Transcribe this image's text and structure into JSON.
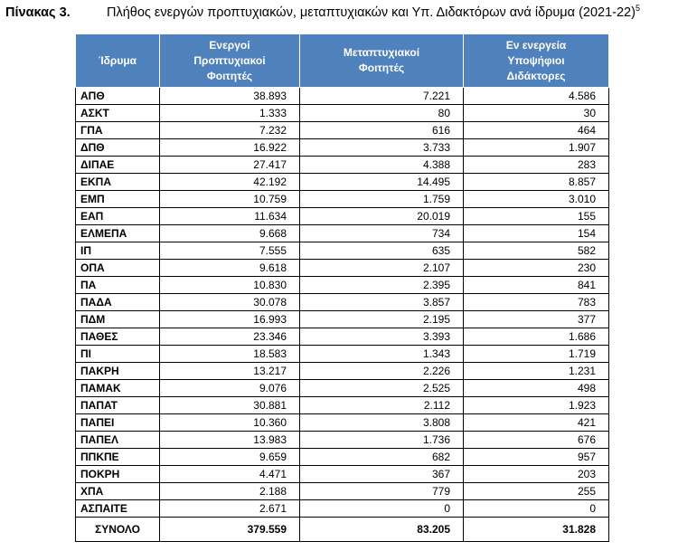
{
  "caption": {
    "label": "Πίνακας 3.",
    "title": "Πλήθος ενεργών προπτυχιακών, μεταπτυχιακών και Υπ. Διδακτόρων ανά ίδρυμα (2021-22)",
    "footnote": "5"
  },
  "table": {
    "headers": [
      [
        "Ίδρυμα"
      ],
      [
        "Ενεργοί",
        "Προπτυχιακοί",
        "Φοιτητές"
      ],
      [
        "Μεταπτυχιακοί",
        "Φοιτητές"
      ],
      [
        "Εν ενεργεία",
        "Υποψήφιοι",
        "Διδάκτορες"
      ]
    ],
    "rows": [
      [
        "ΑΠΘ",
        "38.893",
        "7.221",
        "4.586"
      ],
      [
        "ΑΣΚΤ",
        "1.333",
        "80",
        "30"
      ],
      [
        "ΓΠΑ",
        "7.232",
        "616",
        "464"
      ],
      [
        "ΔΠΘ",
        "16.922",
        "3.733",
        "1.907"
      ],
      [
        "ΔΙΠΑΕ",
        "27.417",
        "4.388",
        "283"
      ],
      [
        "ΕΚΠΑ",
        "42.192",
        "14.495",
        "8.857"
      ],
      [
        "ΕΜΠ",
        "10.759",
        "1.759",
        "3.010"
      ],
      [
        "ΕΑΠ",
        "11.634",
        "20.019",
        "155"
      ],
      [
        "ΕΛΜΕΠΑ",
        "9.668",
        "734",
        "154"
      ],
      [
        "ΙΠ",
        "7.555",
        "635",
        "582"
      ],
      [
        "ΟΠΑ",
        "9.618",
        "2.107",
        "230"
      ],
      [
        "ΠΑ",
        "10.830",
        "2.395",
        "841"
      ],
      [
        "ΠΑΔΑ",
        "30.078",
        "3.857",
        "783"
      ],
      [
        "ΠΔΜ",
        "16.993",
        "2.195",
        "377"
      ],
      [
        "ΠΑΘΕΣ",
        "23.346",
        "3.393",
        "1.686"
      ],
      [
        "ΠΙ",
        "18.583",
        "1.343",
        "1.719"
      ],
      [
        "ΠΑΚΡΗ",
        "13.217",
        "2.226",
        "1.231"
      ],
      [
        "ΠΑΜΑΚ",
        "9.076",
        "2.525",
        "498"
      ],
      [
        "ΠΑΠΑΤ",
        "30.881",
        "2.112",
        "1.923"
      ],
      [
        "ΠΑΠΕΙ",
        "10.360",
        "3.808",
        "421"
      ],
      [
        "ΠΑΠΕΛ",
        "13.983",
        "1.736",
        "676"
      ],
      [
        "ΠΠΚΠΕ",
        "9.659",
        "682",
        "957"
      ],
      [
        "ΠΟΚΡΗ",
        "4.471",
        "367",
        "203"
      ],
      [
        "ΧΠΑ",
        "2.188",
        "779",
        "255"
      ],
      [
        "ΑΣΠΑΙΤΕ",
        "2.671",
        "0",
        "0"
      ]
    ],
    "total": [
      "ΣΥΝΟΛΟ",
      "379.559",
      "83.205",
      "31.828"
    ]
  },
  "colors": {
    "header_bg": "#4f81bd",
    "header_text": "#ffffff"
  }
}
